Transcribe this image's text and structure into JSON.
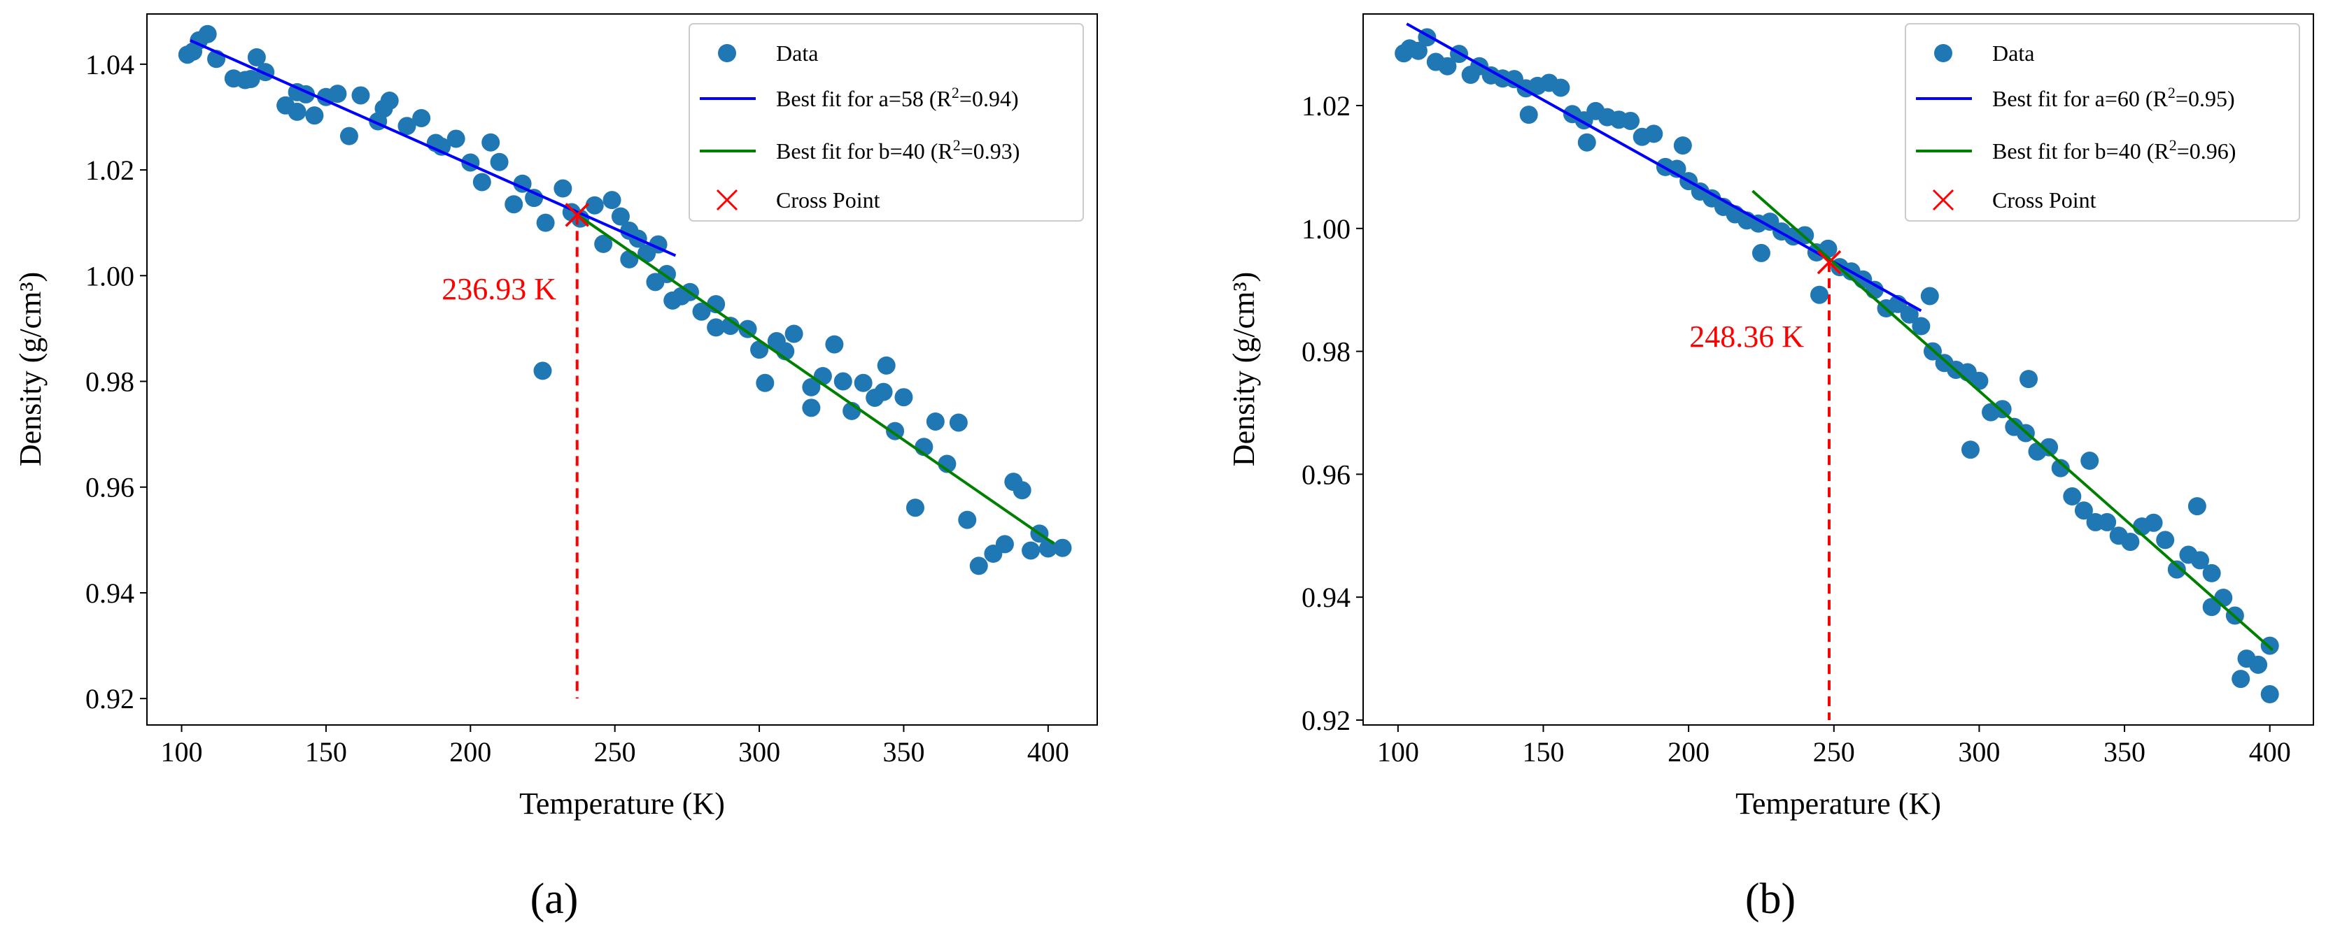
{
  "chart_data": [
    {
      "type": "scatter",
      "panel_label": "(a)",
      "xlabel": "Temperature (K)",
      "ylabel": "Density (g/cm³)",
      "xlim": [
        88,
        417
      ],
      "ylim": [
        0.915,
        1.0495
      ],
      "xticks": [
        100,
        150,
        200,
        250,
        300,
        350,
        400
      ],
      "xtick_labels": [
        "100",
        "150",
        "200",
        "250",
        "300",
        "350",
        "400"
      ],
      "yticks": [
        0.92,
        0.94,
        0.96,
        0.98,
        1.0,
        1.02,
        1.04
      ],
      "ytick_labels": [
        "0.92",
        "0.94",
        "0.96",
        "0.98",
        "1.00",
        "1.02",
        "1.04"
      ],
      "legend_position": "top-right",
      "legend": [
        {
          "marker": "dot",
          "color": "#1f77b4",
          "label": "Data"
        },
        {
          "marker": "line",
          "color": "#0000ff",
          "label_prefix": "Best fit for a=58 (R",
          "label_sup": "2",
          "label_suffix": "=0.94)"
        },
        {
          "marker": "line",
          "color": "#008000",
          "label_prefix": "Best fit for b=40 (R",
          "label_sup": "2",
          "label_suffix": "=0.93)"
        },
        {
          "marker": "cross",
          "color": "#ff0000",
          "label": "Cross Point"
        }
      ],
      "fit_a": {
        "name": "Best fit for a=58",
        "color": "#0000ff",
        "x": [
          103,
          271
        ],
        "y": [
          1.0445,
          1.0038
        ]
      },
      "fit_b": {
        "name": "Best fit for b=40",
        "color": "#008000",
        "x": [
          237,
          402
        ],
        "y": [
          1.0115,
          0.9493
        ]
      },
      "cross_point": {
        "x": 236.93,
        "y": 1.0115,
        "label": "236.93 K",
        "color": "#ff0000"
      },
      "points": {
        "color": "#1f77b4",
        "x": [
          102,
          104,
          106,
          109,
          112,
          118,
          122,
          124,
          126,
          129,
          136,
          140,
          143,
          146,
          150,
          154,
          158,
          162,
          168,
          172,
          178,
          183,
          188,
          190,
          195,
          200,
          204,
          207,
          210,
          215,
          218,
          222,
          226,
          232,
          235,
          238,
          243,
          246,
          249,
          252,
          255,
          258,
          261,
          264,
          268,
          270,
          273,
          276,
          280,
          285,
          290,
          296,
          302,
          306,
          309,
          312,
          318,
          322,
          326,
          329,
          332,
          336,
          340,
          344,
          347,
          350,
          354,
          357,
          361,
          365,
          369,
          372,
          376,
          381,
          385,
          388,
          391,
          394,
          397,
          400,
          225,
          300,
          343,
          255,
          170,
          140,
          265,
          318,
          285,
          405
        ],
        "y": [
          1.0418,
          1.0424,
          1.0445,
          1.0457,
          1.041,
          1.0373,
          1.037,
          1.0372,
          1.0413,
          1.0385,
          1.0322,
          1.031,
          1.0343,
          1.0303,
          1.0338,
          1.0344,
          1.0264,
          1.0341,
          1.0292,
          1.0331,
          1.0283,
          1.0298,
          1.0251,
          1.0244,
          1.0259,
          1.0214,
          1.0177,
          1.0252,
          1.0215,
          1.0135,
          1.0174,
          1.0147,
          1.01,
          1.0165,
          1.012,
          1.0108,
          1.0133,
          1.006,
          1.0143,
          1.0112,
          1.0031,
          1.007,
          1.0042,
          0.9988,
          1.0003,
          0.9953,
          0.9961,
          0.9969,
          0.9932,
          0.9946,
          0.9905,
          0.9899,
          0.9797,
          0.9876,
          0.9857,
          0.989,
          0.9789,
          0.981,
          0.987,
          0.98,
          0.9744,
          0.9797,
          0.9769,
          0.983,
          0.9706,
          0.977,
          0.9561,
          0.9676,
          0.9724,
          0.9644,
          0.9722,
          0.9538,
          0.9451,
          0.9474,
          0.9492,
          0.961,
          0.9594,
          0.948,
          0.9512,
          0.9484,
          0.982,
          0.986,
          0.978,
          1.0085,
          1.0316,
          1.0347,
          1.0059,
          0.975,
          0.9902,
          0.9485
        ]
      }
    },
    {
      "type": "scatter",
      "panel_label": "(b)",
      "xlabel": "Temperature (K)",
      "ylabel": "Density (g/cm³)",
      "xlim": [
        88,
        415
      ],
      "ylim": [
        0.9192,
        1.0349
      ],
      "xticks": [
        100,
        150,
        200,
        250,
        300,
        350,
        400
      ],
      "xtick_labels": [
        "100",
        "150",
        "200",
        "250",
        "300",
        "350",
        "400"
      ],
      "yticks": [
        0.92,
        0.94,
        0.96,
        0.98,
        1.0,
        1.02
      ],
      "ytick_labels": [
        "0.92",
        "0.94",
        "0.96",
        "0.98",
        "1.00",
        "1.02"
      ],
      "legend_position": "top-right",
      "legend": [
        {
          "marker": "dot",
          "color": "#1f77b4",
          "label": "Data"
        },
        {
          "marker": "line",
          "color": "#0000ff",
          "label_prefix": "Best fit for a=60 (R",
          "label_sup": "2",
          "label_suffix": "=0.95)"
        },
        {
          "marker": "line",
          "color": "#008000",
          "label_prefix": "Best fit for b=40 (R",
          "label_sup": "2",
          "label_suffix": "=0.96)"
        },
        {
          "marker": "cross",
          "color": "#ff0000",
          "label": "Cross Point"
        }
      ],
      "fit_a": {
        "name": "Best fit for a=60",
        "color": "#0000ff",
        "x": [
          103,
          280
        ],
        "y": [
          1.0333,
          0.9866
        ]
      },
      "fit_b": {
        "name": "Best fit for b=40",
        "color": "#008000",
        "x": [
          222,
          401
        ],
        "y": [
          1.0061,
          0.9314
        ]
      },
      "cross_point": {
        "x": 248.36,
        "y": 0.9945,
        "label": "248.36 K",
        "color": "#ff0000"
      },
      "points": {
        "color": "#1f77b4",
        "x": [
          102,
          104,
          107,
          110,
          113,
          117,
          121,
          125,
          128,
          132,
          136,
          140,
          144,
          148,
          152,
          156,
          160,
          164,
          168,
          172,
          176,
          180,
          184,
          188,
          192,
          196,
          200,
          204,
          208,
          212,
          216,
          220,
          224,
          228,
          232,
          236,
          240,
          244,
          248,
          252,
          256,
          260,
          264,
          268,
          272,
          276,
          280,
          284,
          288,
          292,
          296,
          300,
          304,
          308,
          312,
          316,
          320,
          324,
          328,
          332,
          336,
          340,
          344,
          348,
          352,
          356,
          360,
          364,
          368,
          372,
          376,
          380,
          384,
          388,
          392,
          396,
          400,
          145,
          165,
          198,
          225,
          245,
          283,
          297,
          317,
          338,
          375,
          380,
          390,
          400
        ],
        "y": [
          1.0285,
          1.0293,
          1.0289,
          1.0311,
          1.0271,
          1.0264,
          1.0284,
          1.025,
          1.0264,
          1.0249,
          1.0244,
          1.0243,
          1.0228,
          1.0232,
          1.0237,
          1.0229,
          1.0186,
          1.0176,
          1.0191,
          1.0181,
          1.0177,
          1.0175,
          1.0149,
          1.0154,
          1.01,
          1.0097,
          1.0077,
          1.006,
          1.0049,
          1.0035,
          1.0023,
          1.0013,
          1.0008,
          1.0011,
          0.9995,
          0.9987,
          0.9989,
          0.9961,
          0.9967,
          0.9937,
          0.993,
          0.9917,
          0.99,
          0.987,
          0.9877,
          0.986,
          0.9841,
          0.98,
          0.9781,
          0.977,
          0.9766,
          0.9752,
          0.9701,
          0.9706,
          0.9677,
          0.9667,
          0.9637,
          0.9644,
          0.961,
          0.9564,
          0.9541,
          0.9522,
          0.9522,
          0.95,
          0.949,
          0.9515,
          0.9521,
          0.9493,
          0.9445,
          0.9469,
          0.946,
          0.9439,
          0.9399,
          0.937,
          0.93,
          0.929,
          0.9321,
          1.0185,
          1.014,
          1.0135,
          0.996,
          0.9892,
          0.989,
          0.964,
          0.9755,
          0.9622,
          0.9548,
          0.9384,
          0.9267,
          0.9242
        ]
      }
    }
  ]
}
